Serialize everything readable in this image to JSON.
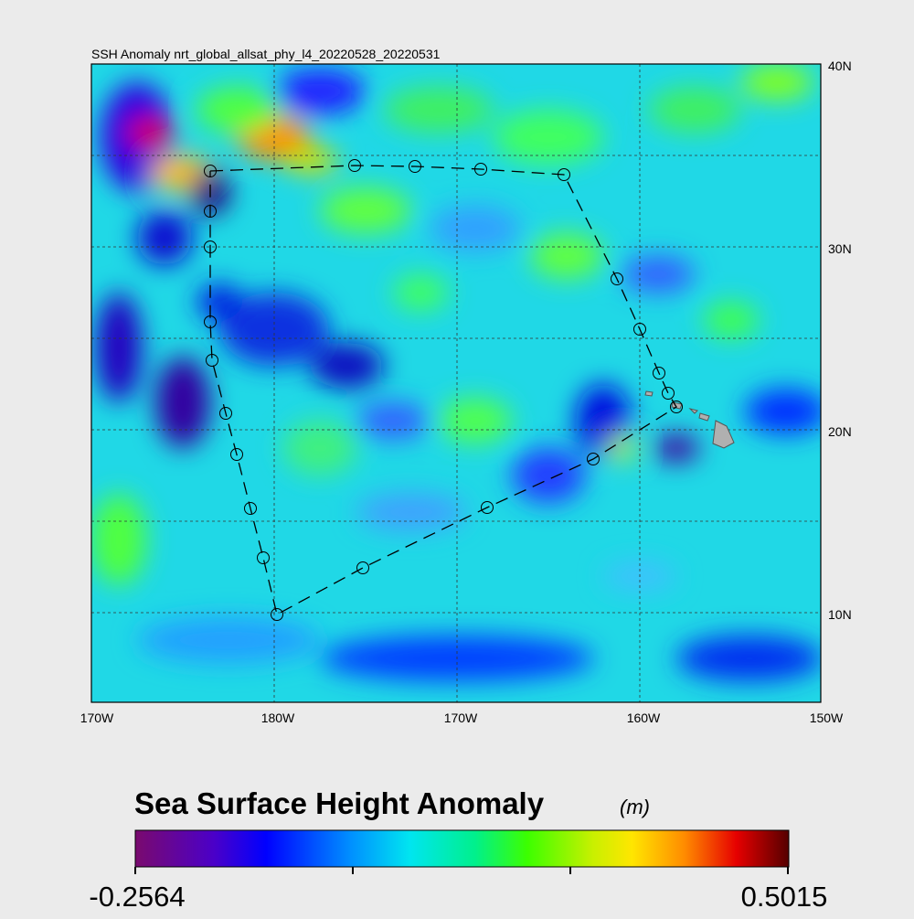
{
  "title": "SSH Anomaly nrt_global_allsat_phy_l4_20220528_20220531",
  "map": {
    "x_labels": [
      "170W",
      "180W",
      "170W",
      "160W",
      "150W"
    ],
    "y_labels": [
      "40N",
      "30N",
      "20N",
      "10N"
    ]
  },
  "colorbar": {
    "title": "Sea Surface Height Anomaly",
    "units": "(m)",
    "min_label": -0.2564,
    "max_label": 0.5015
  }
}
